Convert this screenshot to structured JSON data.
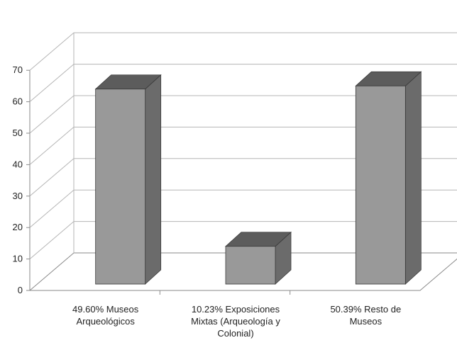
{
  "chart_data": {
    "type": "bar",
    "three_d": true,
    "categories": [
      [
        "49.60%   Museos",
        "Arqueológicos"
      ],
      [
        "10.23%   Exposiciones",
        "Mixtas (Arqueología y",
        "Colonial)"
      ],
      [
        "50.39%   Resto de",
        "Museos"
      ]
    ],
    "values": [
      62,
      12,
      63
    ],
    "ylim": [
      0,
      70
    ],
    "yticks": [
      0,
      10,
      20,
      30,
      40,
      50,
      60,
      70
    ],
    "grid": true,
    "legend": "none",
    "colors": {
      "bar_front": "#999999",
      "bar_side": "#6b6b6b",
      "bar_top": "#5c5c5c",
      "bar_edge": "#3a3a3a",
      "grid": "#b5b5b5",
      "axis": "#8a8a8a"
    }
  }
}
